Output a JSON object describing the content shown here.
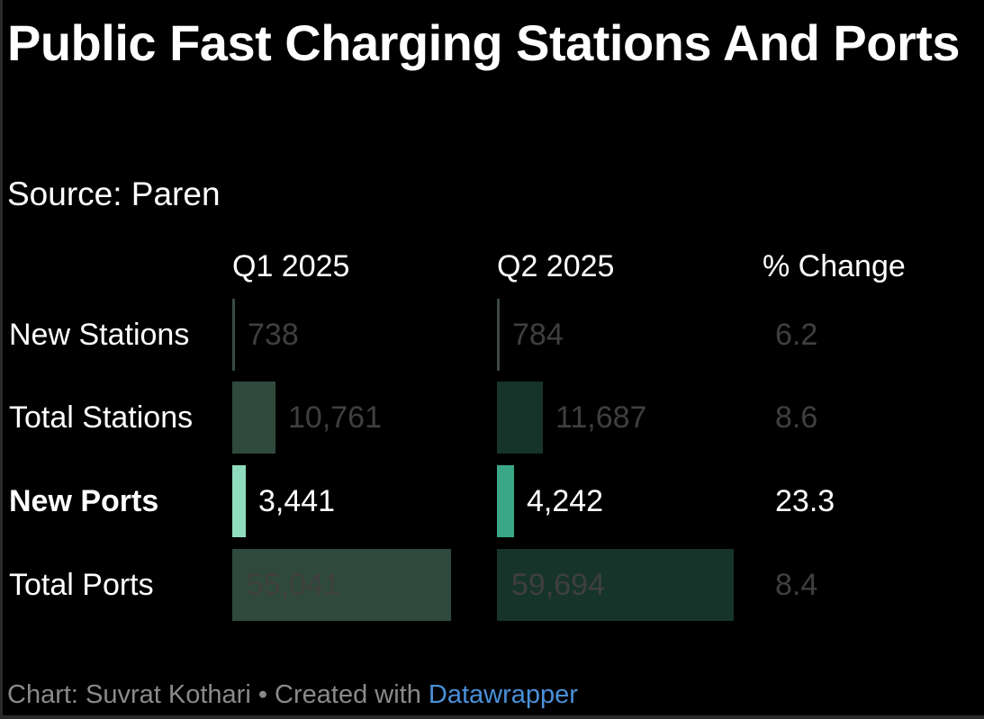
{
  "title": "Public Fast Charging Stations And Ports",
  "subtitle": "Source: Paren",
  "colors": {
    "q1_bar": "#2f4a3d",
    "q2_bar": "#163429",
    "q1_highlight": "#8fdcbf",
    "q2_highlight": "#3aa886",
    "dim_text": "#3f3f3f",
    "link": "#4a90d9"
  },
  "chart_data": {
    "type": "table",
    "columns": [
      "Q1 2025",
      "Q2 2025",
      "% Change"
    ],
    "rows": [
      {
        "label": "New Stations",
        "q1": 738,
        "q1_label": "738",
        "q2": 784,
        "q2_label": "784",
        "change": "6.2",
        "highlight": false
      },
      {
        "label": "Total Stations",
        "q1": 10761,
        "q1_label": "10,761",
        "q2": 11687,
        "q2_label": "11,687",
        "change": "8.6",
        "highlight": false
      },
      {
        "label": "New Ports",
        "q1": 3441,
        "q1_label": "3,441",
        "q2": 4242,
        "q2_label": "4,242",
        "change": "23.3",
        "highlight": true
      },
      {
        "label": "Total Ports",
        "q1": 55041,
        "q1_label": "55,041",
        "q2": 59694,
        "q2_label": "59,694",
        "change": "8.4",
        "highlight": false
      }
    ]
  },
  "footer": {
    "prefix": "Chart: Suvrat Kothari • Created with ",
    "link": "Datawrapper"
  }
}
